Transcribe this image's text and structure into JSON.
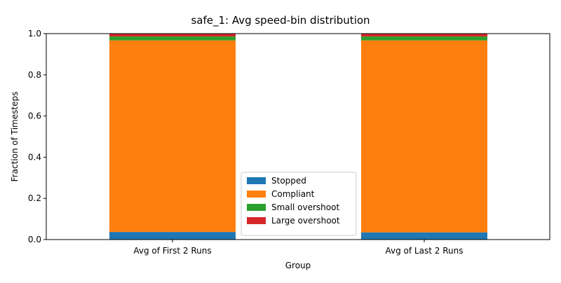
{
  "chart_data": {
    "type": "bar",
    "stacked": true,
    "title": "safe_1: Avg speed-bin distribution",
    "xlabel": "Group",
    "ylabel": "Fraction of Timesteps",
    "ylim": [
      0,
      1.0
    ],
    "yticks": [
      "0.0",
      "0.2",
      "0.4",
      "0.6",
      "0.8",
      "1.0"
    ],
    "categories": [
      "Avg of First 2 Runs",
      "Avg of Last 2 Runs"
    ],
    "series": [
      {
        "name": "Stopped",
        "color": "#1f77b4",
        "values": [
          0.037,
          0.035
        ]
      },
      {
        "name": "Compliant",
        "color": "#ff7f0e",
        "values": [
          0.93,
          0.932
        ]
      },
      {
        "name": "Small overshoot",
        "color": "#2ca02c",
        "values": [
          0.019,
          0.019
        ]
      },
      {
        "name": "Large overshoot",
        "color": "#d62728",
        "values": [
          0.014,
          0.014
        ]
      }
    ],
    "legend_position": "lower center",
    "grid": false
  }
}
